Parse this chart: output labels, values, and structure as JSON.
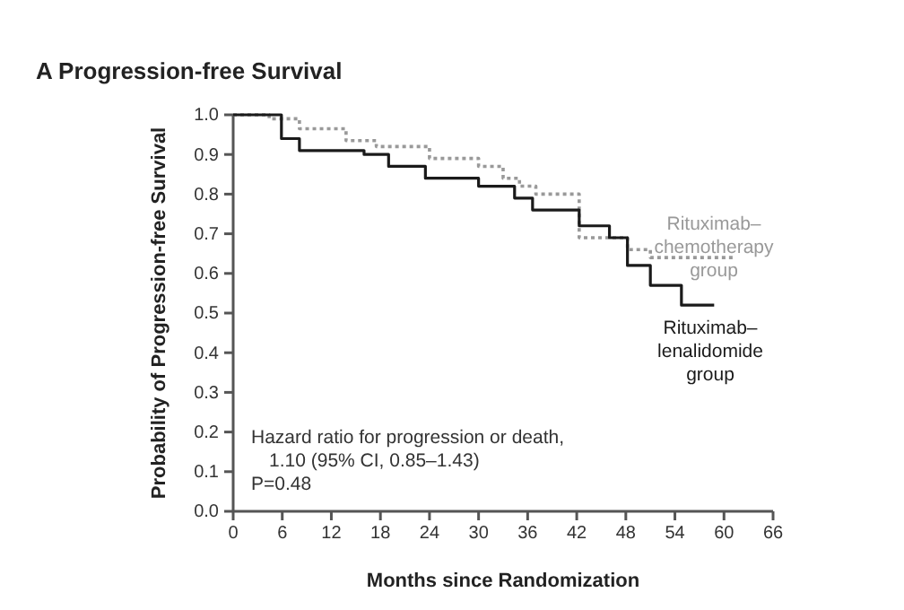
{
  "chart_data": {
    "type": "step",
    "title": "A Progression-free Survival",
    "xlabel": "Months since Randomization",
    "ylabel": "Probability of Progression-free Survival",
    "xlim": [
      0,
      66
    ],
    "xticks": [
      0,
      6,
      12,
      18,
      24,
      30,
      36,
      42,
      48,
      54,
      60,
      66
    ],
    "ylim": [
      0,
      1
    ],
    "yticks": [
      {
        "value": 0,
        "label": "0.0"
      },
      0.1,
      0.2,
      0.3,
      0.4,
      0.5,
      0.6,
      0.7,
      0.8,
      0.9,
      {
        "value": 1,
        "label": "1.0"
      }
    ],
    "grid": false,
    "series": [
      {
        "name": "Rituximab–chemotherapy group",
        "color": "#999999",
        "line_style": "dotted",
        "x": [
          0,
          4.4,
          8.1,
          13.8,
          17.5,
          24,
          30,
          33,
          35,
          37,
          42.3,
          48.2,
          51,
          61.4
        ],
        "values": [
          1.0,
          0.99,
          0.965,
          0.935,
          0.92,
          0.89,
          0.87,
          0.84,
          0.82,
          0.8,
          0.69,
          0.66,
          0.64,
          0.64
        ]
      },
      {
        "name": "Rituximab–lenalidomide group",
        "color": "#1a1a1a",
        "line_style": "solid",
        "x": [
          0,
          5.9,
          8.1,
          16,
          19,
          23.5,
          30,
          34.4,
          36.6,
          42.3,
          46,
          48.2,
          51,
          54.8,
          58.8
        ],
        "values": [
          1.0,
          0.94,
          0.91,
          0.9,
          0.87,
          0.84,
          0.82,
          0.79,
          0.76,
          0.72,
          0.69,
          0.62,
          0.57,
          0.52,
          0.52
        ]
      }
    ],
    "annotations": [
      "Hazard ratio for progression or death,",
      "1.10 (95% CI, 0.85–1.43)",
      "P=0.48"
    ]
  }
}
